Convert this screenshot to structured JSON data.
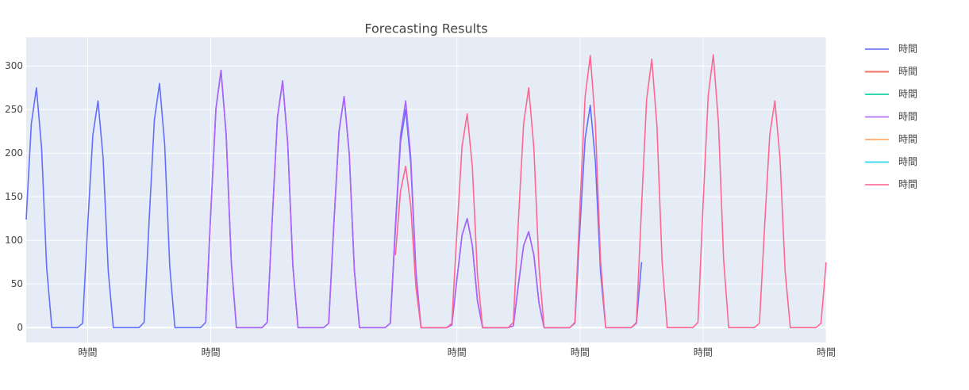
{
  "chart_data": {
    "type": "line",
    "title": "Forecasting Results",
    "xlim": [
      0,
      312
    ],
    "ylim": [
      -17,
      333
    ],
    "xticks": [
      {
        "value": 24,
        "label": "時間"
      },
      {
        "value": 72,
        "label": "時間"
      },
      {
        "value": 168,
        "label": "時間"
      },
      {
        "value": 216,
        "label": "時間"
      },
      {
        "value": 264,
        "label": "時間"
      },
      {
        "value": 312,
        "label": "時間"
      }
    ],
    "yticks": [
      0,
      50,
      100,
      150,
      200,
      250,
      300
    ],
    "grid": true,
    "legend": "right",
    "series": [
      {
        "name": "時間",
        "color": "#636efa",
        "x": [
          0,
          2,
          4,
          6,
          8,
          10,
          12,
          14,
          16,
          18,
          20,
          22,
          24,
          26,
          28,
          30,
          32,
          34,
          36,
          38,
          40,
          42,
          44,
          46,
          48,
          50,
          52,
          54,
          56,
          58,
          60,
          62,
          64,
          66,
          68,
          70,
          72,
          74,
          76,
          78,
          80,
          82,
          84,
          86,
          88,
          90,
          92,
          94,
          96,
          98,
          100,
          102,
          104,
          106,
          108,
          110,
          112,
          114,
          116,
          118,
          120,
          122,
          124,
          126,
          128,
          130,
          132,
          134,
          136,
          138,
          140,
          142,
          144,
          146,
          148,
          150,
          152,
          154,
          156,
          158,
          160,
          162,
          164,
          166,
          168,
          170,
          172,
          174,
          176,
          178,
          180,
          182,
          184,
          186,
          188,
          190,
          192,
          194,
          196,
          198,
          200,
          202,
          204,
          206,
          208,
          210,
          212,
          214,
          216,
          218,
          220,
          222,
          224,
          226,
          228,
          230,
          232,
          234,
          236,
          238,
          240
        ],
        "values": [
          124,
          234,
          275,
          206,
          69,
          0,
          0,
          0,
          0,
          0,
          0,
          5,
          117,
          221,
          260,
          195,
          65,
          0,
          0,
          0,
          0,
          0,
          0,
          6,
          126,
          238,
          280,
          210,
          70,
          0,
          0,
          0,
          0,
          0,
          0,
          6,
          133,
          251,
          295,
          221,
          74,
          0,
          0,
          0,
          0,
          0,
          0,
          6,
          127,
          241,
          283,
          212,
          71,
          0,
          0,
          0,
          0,
          0,
          0,
          5,
          119,
          225,
          265,
          199,
          66,
          0,
          0,
          0,
          0,
          0,
          0,
          5,
          113,
          213,
          250,
          188,
          63,
          0,
          0,
          0,
          0,
          0,
          0,
          3,
          56,
          106,
          125,
          94,
          31,
          0,
          0,
          0,
          0,
          0,
          0,
          2,
          50,
          94,
          110,
          83,
          28,
          0,
          0,
          0,
          0,
          0,
          0,
          5,
          115,
          217,
          255,
          191,
          64,
          0,
          0,
          0,
          0,
          0,
          0,
          5,
          75
        ]
      },
      {
        "name": "時間",
        "color": "#EF553B",
        "x": [],
        "values": []
      },
      {
        "name": "時間",
        "color": "#00cc96",
        "x": [],
        "values": []
      },
      {
        "name": "時間",
        "color": "#ab63fa",
        "x": [
          70,
          72,
          74,
          76,
          78,
          80,
          82,
          84,
          86,
          88,
          90,
          92,
          94,
          96,
          98,
          100,
          102,
          104,
          106,
          108,
          110,
          112,
          114,
          116,
          118,
          120,
          122,
          124,
          126,
          128,
          130,
          132,
          134,
          136,
          138,
          140,
          142,
          144,
          146,
          148,
          150,
          152,
          154,
          156,
          158,
          160,
          162,
          164,
          166,
          168,
          170,
          172,
          174,
          176,
          178,
          180,
          182,
          184,
          186,
          188,
          190,
          192,
          194,
          196,
          198,
          200,
          202,
          204,
          206,
          208,
          210,
          212
        ],
        "values": [
          6,
          133,
          251,
          295,
          221,
          74,
          0,
          0,
          0,
          0,
          0,
          0,
          6,
          127,
          241,
          283,
          212,
          71,
          0,
          0,
          0,
          0,
          0,
          0,
          5,
          119,
          225,
          265,
          199,
          66,
          0,
          0,
          0,
          0,
          0,
          0,
          5,
          117,
          221,
          260,
          195,
          65,
          0,
          0,
          0,
          0,
          0,
          0,
          3,
          56,
          106,
          125,
          94,
          31,
          0,
          0,
          0,
          0,
          0,
          0,
          2,
          50,
          94,
          110,
          83,
          28,
          0,
          0,
          0,
          0,
          0,
          0
        ]
      },
      {
        "name": "時間",
        "color": "#FFA15A",
        "x": [],
        "values": []
      },
      {
        "name": "時間",
        "color": "#19d3f3",
        "x": [],
        "values": []
      },
      {
        "name": "時間",
        "color": "#FF6692",
        "x": [
          144,
          146,
          148,
          150,
          152,
          154,
          156,
          158,
          160,
          162,
          164,
          166,
          168,
          170,
          172,
          174,
          176,
          178,
          180,
          182,
          184,
          186,
          188,
          190,
          192,
          194,
          196,
          198,
          200,
          202,
          204,
          206,
          208,
          210,
          212,
          214,
          216,
          218,
          220,
          222,
          224,
          226,
          228,
          230,
          232,
          234,
          236,
          238,
          240,
          242,
          244,
          246,
          248,
          250,
          252,
          254,
          256,
          258,
          260,
          262,
          264,
          266,
          268,
          270,
          272,
          274,
          276,
          278,
          280,
          282,
          284,
          286,
          288,
          290,
          292,
          294,
          296,
          298,
          300,
          302,
          304,
          306,
          308,
          310,
          312
        ],
        "values": [
          83,
          157,
          185,
          139,
          46,
          0,
          0,
          0,
          0,
          0,
          0,
          5,
          110,
          208,
          245,
          184,
          61,
          0,
          0,
          0,
          0,
          0,
          0,
          6,
          124,
          234,
          275,
          206,
          69,
          0,
          0,
          0,
          0,
          0,
          0,
          6,
          140,
          265,
          312,
          234,
          78,
          0,
          0,
          0,
          0,
          0,
          0,
          6,
          139,
          262,
          308,
          231,
          77,
          0,
          0,
          0,
          0,
          0,
          0,
          6,
          141,
          266,
          313,
          235,
          78,
          0,
          0,
          0,
          0,
          0,
          0,
          5,
          117,
          221,
          260,
          195,
          65,
          0,
          0,
          0,
          0,
          0,
          0,
          5,
          75
        ]
      }
    ]
  }
}
